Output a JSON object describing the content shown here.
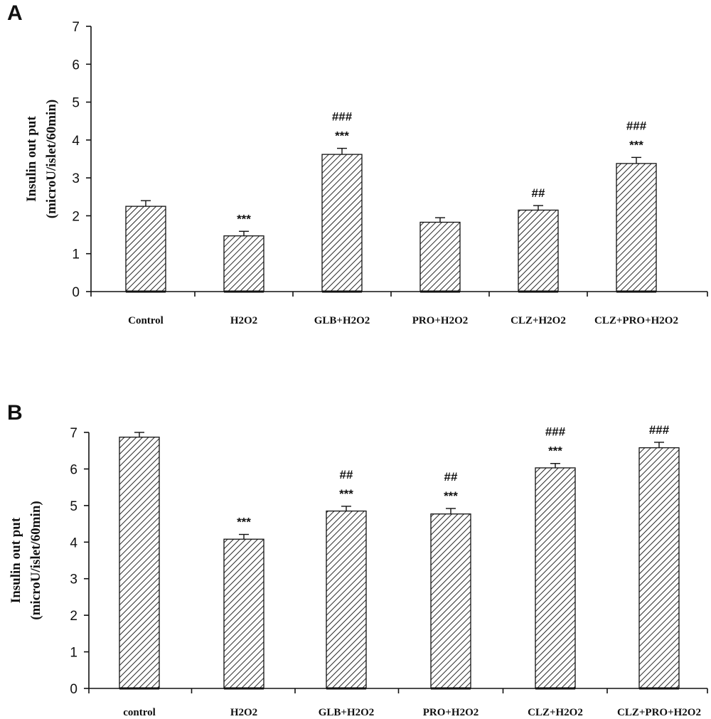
{
  "chart_data": [
    {
      "panel": "A",
      "type": "bar",
      "ylabel": [
        "Insulin out put",
        "(microU/islet/60min)"
      ],
      "ylim": [
        0,
        7
      ],
      "yticks": [
        "0",
        "1",
        "2",
        "3",
        "4",
        "5",
        "6",
        "7"
      ],
      "categories": [
        "Control",
        "H2O2",
        "GLB+H2O2",
        "PRO+H2O2",
        "CLZ+H2O2",
        "CLZ+PRO+H2O2"
      ],
      "values": [
        2.25,
        1.47,
        3.62,
        1.83,
        2.15,
        3.38
      ],
      "errors": [
        0.15,
        0.12,
        0.16,
        0.12,
        0.12,
        0.16
      ],
      "annotations": [
        {
          "category": "H2O2",
          "lines": [
            "***"
          ]
        },
        {
          "category": "GLB+H2O2",
          "lines": [
            "###",
            "***"
          ]
        },
        {
          "category": "CLZ+H2O2",
          "lines": [
            "##"
          ]
        },
        {
          "category": "CLZ+PRO+H2O2",
          "lines": [
            "###",
            "***"
          ]
        }
      ],
      "grid": false,
      "legend": "none"
    },
    {
      "panel": "B",
      "type": "bar",
      "ylabel": [
        "Insulin out put",
        "(microU/islet/60min)"
      ],
      "ylim": [
        0,
        7
      ],
      "yticks": [
        "0",
        "1",
        "2",
        "3",
        "4",
        "5",
        "6",
        "7"
      ],
      "categories": [
        "control",
        "H2O2",
        "GLB+H2O2",
        "PRO+H2O2",
        "CLZ+H2O2",
        "CLZ+PRO+H2O2"
      ],
      "values": [
        6.87,
        4.08,
        4.85,
        4.77,
        6.03,
        6.58
      ],
      "errors": [
        0.13,
        0.13,
        0.13,
        0.15,
        0.12,
        0.15
      ],
      "annotations": [
        {
          "category": "H2O2",
          "lines": [
            "***"
          ]
        },
        {
          "category": "GLB+H2O2",
          "lines": [
            "##",
            "***"
          ]
        },
        {
          "category": "PRO+H2O2",
          "lines": [
            "##",
            "***"
          ]
        },
        {
          "category": "CLZ+H2O2",
          "lines": [
            "###",
            "***"
          ]
        },
        {
          "category": "CLZ+PRO+H2O2",
          "lines": [
            "###"
          ]
        }
      ],
      "grid": false,
      "legend": "none"
    }
  ],
  "style": {
    "bar_fill": "#ffffff",
    "hatch_color": "#111111",
    "axis_color": "#111111"
  }
}
